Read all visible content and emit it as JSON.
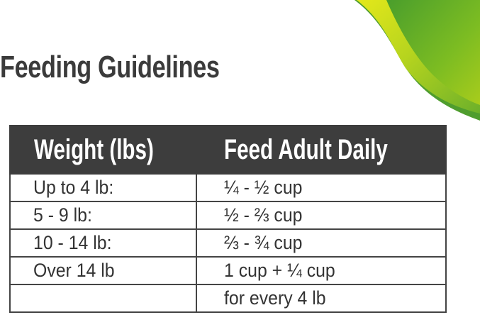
{
  "title": "Feeding Guidelines",
  "colors": {
    "accent_green": "#5aa82a",
    "accent_yellow": "#c8dc1e",
    "header_bg": "#3d3d3d"
  },
  "table": {
    "headers": [
      "Weight (lbs)",
      "Feed Adult Daily"
    ],
    "rows": [
      [
        "Up to 4 lb:",
        "¼ - ½ cup"
      ],
      [
        "5 - 9 lb:",
        "½ - ⅔ cup"
      ],
      [
        "10 - 14 lb:",
        "⅔ - ¾ cup"
      ],
      [
        "Over 14 lb",
        "1 cup + ¼ cup"
      ],
      [
        "",
        "for every 4 lb"
      ]
    ]
  }
}
